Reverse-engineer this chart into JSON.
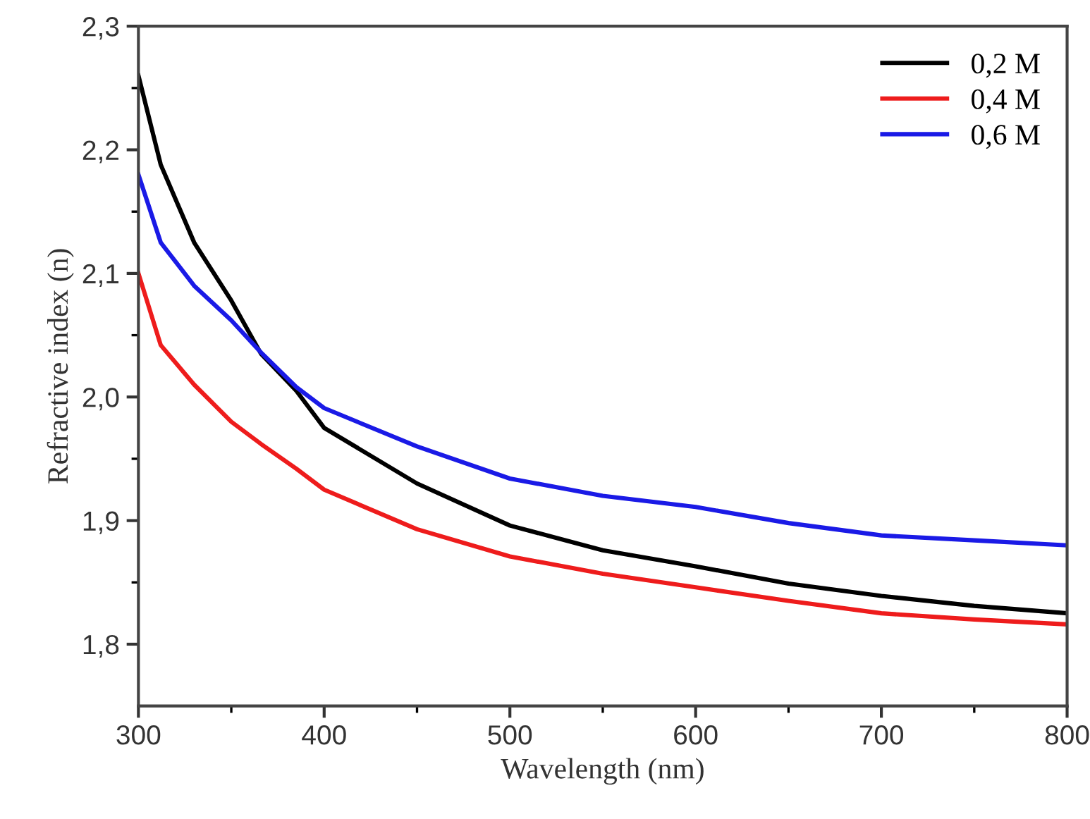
{
  "chart_data": {
    "type": "line",
    "xlabel": "Wavelength (nm)",
    "ylabel": "Refractive index (n)",
    "xlim": [
      300,
      800
    ],
    "xticks": [
      300,
      400,
      500,
      600,
      700,
      800
    ],
    "ylim": [
      1.75,
      2.3
    ],
    "yticks": [
      {
        "value": 1.8,
        "label": "1,8"
      },
      {
        "value": 1.9,
        "label": "1,9"
      },
      {
        "value": 2.0,
        "label": "2,0"
      },
      {
        "value": 2.1,
        "label": "2,1"
      },
      {
        "value": 2.2,
        "label": "2,2"
      },
      {
        "value": 2.3,
        "label": "2,3"
      }
    ],
    "x": [
      300,
      312,
      330,
      350,
      366,
      385,
      400,
      450,
      500,
      550,
      600,
      650,
      700,
      750,
      800
    ],
    "series": [
      {
        "name": "0,2 M",
        "color": "#000000",
        "values": [
          2.26,
          2.188,
          2.125,
          2.078,
          2.035,
          2.005,
          1.975,
          1.93,
          1.896,
          1.876,
          1.863,
          1.849,
          1.839,
          1.831,
          1.825
        ]
      },
      {
        "name": "0,4 M",
        "color": "#ee1c1c",
        "values": [
          2.1,
          2.042,
          2.01,
          1.98,
          1.962,
          1.942,
          1.925,
          1.893,
          1.871,
          1.857,
          1.846,
          1.835,
          1.825,
          1.82,
          1.816
        ]
      },
      {
        "name": "0,6 M",
        "color": "#1a1ae6",
        "values": [
          2.18,
          2.125,
          2.09,
          2.062,
          2.036,
          2.008,
          1.991,
          1.96,
          1.934,
          1.92,
          1.911,
          1.898,
          1.888,
          1.884,
          1.88
        ]
      }
    ],
    "legend": "top right",
    "grid": false
  }
}
